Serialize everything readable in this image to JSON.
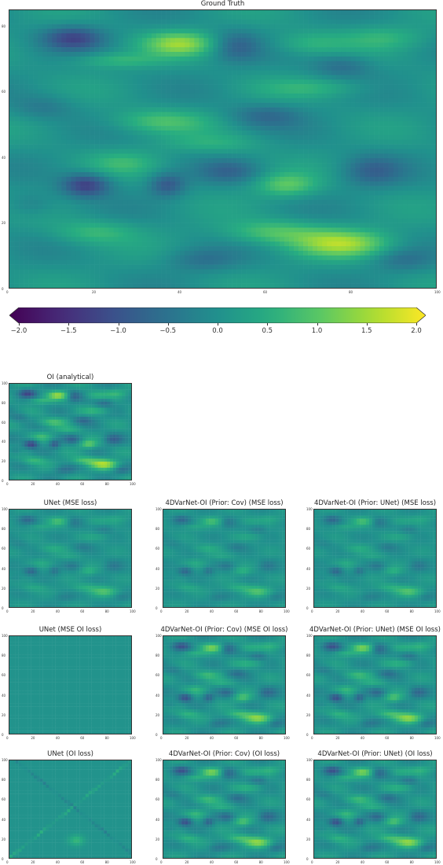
{
  "chart_data": [
    {
      "type": "heatmap",
      "id": "gt",
      "title": "Ground Truth",
      "colormap": "viridis",
      "clim": [
        -2.0,
        2.0
      ],
      "xticks": [
        "0",
        "20",
        "40",
        "60",
        "80",
        "100"
      ],
      "yticks": [
        "0",
        "20",
        "40",
        "60",
        "80"
      ],
      "style": "truth"
    },
    {
      "type": "colorbar",
      "id": "colorbar",
      "extend": "both",
      "range": [
        -2.0,
        2.0
      ],
      "ticks": [
        "−2.0",
        "−1.5",
        "−1.0",
        "−0.5",
        "0.0",
        "0.5",
        "1.0",
        "1.5",
        "2.0"
      ],
      "tick_values": [
        -2.0,
        -1.5,
        -1.0,
        -0.5,
        0.0,
        0.5,
        1.0,
        1.5,
        2.0
      ]
    },
    {
      "type": "heatmap",
      "id": "oi",
      "title": "OI (analytical)",
      "xticks": [
        "0",
        "20",
        "40",
        "60",
        "80",
        "100"
      ],
      "yticks": [
        "0",
        "20",
        "40",
        "60",
        "80",
        "100"
      ],
      "style": "oi"
    },
    {
      "type": "heatmap",
      "id": "unet_mse",
      "title": "UNet (MSE loss)",
      "xticks": [
        "0",
        "20",
        "40",
        "60",
        "80",
        "100"
      ],
      "yticks": [
        "100",
        "80",
        "60",
        "40",
        "20",
        "0"
      ],
      "style": "smooth"
    },
    {
      "type": "heatmap",
      "id": "4dv_cov_mse",
      "title": "4DVarNet-OI (Prior: Cov) (MSE loss)",
      "xticks": [
        "0",
        "20",
        "40",
        "60",
        "80",
        "100"
      ],
      "yticks": [
        "100",
        "80",
        "60",
        "40",
        "20",
        "0"
      ],
      "style": "smooth"
    },
    {
      "type": "heatmap",
      "id": "4dv_unet_mse",
      "title": "4DVarNet-OI (Prior: UNet) (MSE loss)",
      "xticks": [
        "0",
        "20",
        "40",
        "60",
        "80",
        "100"
      ],
      "yticks": [
        "100",
        "80",
        "60",
        "40",
        "20",
        "0"
      ],
      "style": "smooth"
    },
    {
      "type": "heatmap",
      "id": "unet_mseoi",
      "title": "UNet (MSE OI loss)",
      "xticks": [
        "0",
        "20",
        "40",
        "60",
        "80",
        "100"
      ],
      "yticks": [
        "100",
        "80",
        "60",
        "40",
        "20",
        "0"
      ],
      "style": "flat"
    },
    {
      "type": "heatmap",
      "id": "4dv_cov_mseoi",
      "title": "4DVarNet-OI (Prior: Cov) (MSE OI loss)",
      "xticks": [
        "0",
        "20",
        "40",
        "60",
        "80",
        "100"
      ],
      "yticks": [
        "100",
        "80",
        "60",
        "40",
        "20",
        "0"
      ],
      "style": "sharp"
    },
    {
      "type": "heatmap",
      "id": "4dv_unet_mseoi",
      "title": "4DVarNet-OI (Prior: UNet) (MSE OI loss)",
      "xticks": [
        "0",
        "20",
        "40",
        "60",
        "80",
        "100"
      ],
      "yticks": [
        "100",
        "80",
        "60",
        "40",
        "20",
        "0"
      ],
      "style": "sharp"
    },
    {
      "type": "heatmap",
      "id": "unet_oi",
      "title": "UNet (OI loss)",
      "xticks": [
        "0",
        "20",
        "40",
        "60",
        "80",
        "100"
      ],
      "yticks": [
        "100",
        "80",
        "60",
        "40",
        "20",
        "0"
      ],
      "style": "diag"
    },
    {
      "type": "heatmap",
      "id": "4dv_cov_oi",
      "title": "4DVarNet-OI (Prior: Cov) (OI loss)",
      "xticks": [
        "0",
        "20",
        "40",
        "60",
        "80",
        "100"
      ],
      "yticks": [
        "100",
        "80",
        "60",
        "40",
        "20",
        "0"
      ],
      "style": "sharp"
    },
    {
      "type": "heatmap",
      "id": "4dv_unet_oi",
      "title": "4DVarNet-OI (Prior: UNet) (OI loss)",
      "xticks": [
        "0",
        "20",
        "40",
        "60",
        "80",
        "100"
      ],
      "yticks": [
        "100",
        "80",
        "60",
        "40",
        "20",
        "0"
      ],
      "style": "sharp"
    }
  ]
}
